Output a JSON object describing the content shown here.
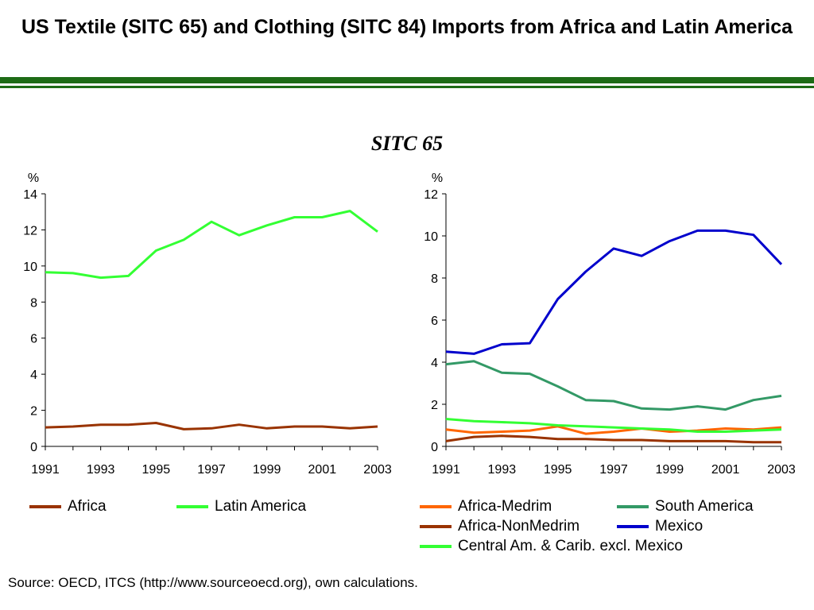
{
  "title": "US Textile (SITC 65) and Clothing (SITC 84) Imports from Africa and Latin America",
  "subtitle": "SITC 65",
  "source": "Source: OECD, ITCS (http://www.sourceoecd.org), own calculations.",
  "chart_data": [
    {
      "type": "line",
      "ylabel": "%",
      "ylim": [
        0,
        14
      ],
      "yticks": [
        "0",
        "2",
        "4",
        "6",
        "8",
        "10",
        "12",
        "14"
      ],
      "xlim": [
        1991,
        2003
      ],
      "xticks": [
        "1991",
        "1993",
        "1995",
        "1997",
        "1999",
        "2001",
        "2003"
      ],
      "x": [
        1991,
        1992,
        1993,
        1994,
        1995,
        1996,
        1997,
        1998,
        1999,
        2000,
        2001,
        2002,
        2003
      ],
      "series": [
        {
          "name": "Africa",
          "color": "#993300",
          "values": [
            1.05,
            1.1,
            1.2,
            1.2,
            1.3,
            0.95,
            1.0,
            1.2,
            1.0,
            1.1,
            1.1,
            1.0,
            1.1
          ]
        },
        {
          "name": "Latin America",
          "color": "#33ff33",
          "values": [
            9.65,
            9.6,
            9.35,
            9.45,
            10.85,
            11.45,
            12.45,
            11.7,
            12.25,
            12.7,
            12.7,
            13.05,
            11.9
          ]
        }
      ],
      "legend_position": "bottom"
    },
    {
      "type": "line",
      "ylabel": "%",
      "ylim": [
        0,
        12
      ],
      "yticks": [
        "0",
        "2",
        "4",
        "6",
        "8",
        "10",
        "12"
      ],
      "xlim": [
        1991,
        2003
      ],
      "xticks": [
        "1991",
        "1993",
        "1995",
        "1997",
        "1999",
        "2001",
        "2003"
      ],
      "x": [
        1991,
        1992,
        1993,
        1994,
        1995,
        1996,
        1997,
        1998,
        1999,
        2000,
        2001,
        2002,
        2003
      ],
      "series": [
        {
          "name": "Africa-Medrim",
          "color": "#ff6600",
          "values": [
            0.8,
            0.65,
            0.7,
            0.75,
            0.95,
            0.6,
            0.7,
            0.85,
            0.7,
            0.75,
            0.85,
            0.8,
            0.9
          ]
        },
        {
          "name": "Africa-NonMedrim",
          "color": "#993300",
          "values": [
            0.25,
            0.45,
            0.5,
            0.45,
            0.35,
            0.35,
            0.3,
            0.3,
            0.25,
            0.25,
            0.25,
            0.2,
            0.2
          ]
        },
        {
          "name": "Central Am. & Carib. excl. Mexico",
          "color": "#33ff33",
          "values": [
            1.3,
            1.2,
            1.15,
            1.1,
            1.0,
            0.95,
            0.9,
            0.85,
            0.8,
            0.7,
            0.7,
            0.75,
            0.8
          ]
        },
        {
          "name": "South America",
          "color": "#339966",
          "values": [
            3.9,
            4.05,
            3.5,
            3.45,
            2.85,
            2.2,
            2.15,
            1.8,
            1.75,
            1.9,
            1.75,
            2.2,
            2.4
          ]
        },
        {
          "name": "Mexico",
          "color": "#0000cc",
          "values": [
            4.5,
            4.4,
            4.85,
            4.9,
            7.0,
            8.3,
            9.4,
            9.05,
            9.75,
            10.25,
            10.25,
            10.05,
            8.65
          ]
        }
      ],
      "legend_position": "bottom"
    }
  ]
}
